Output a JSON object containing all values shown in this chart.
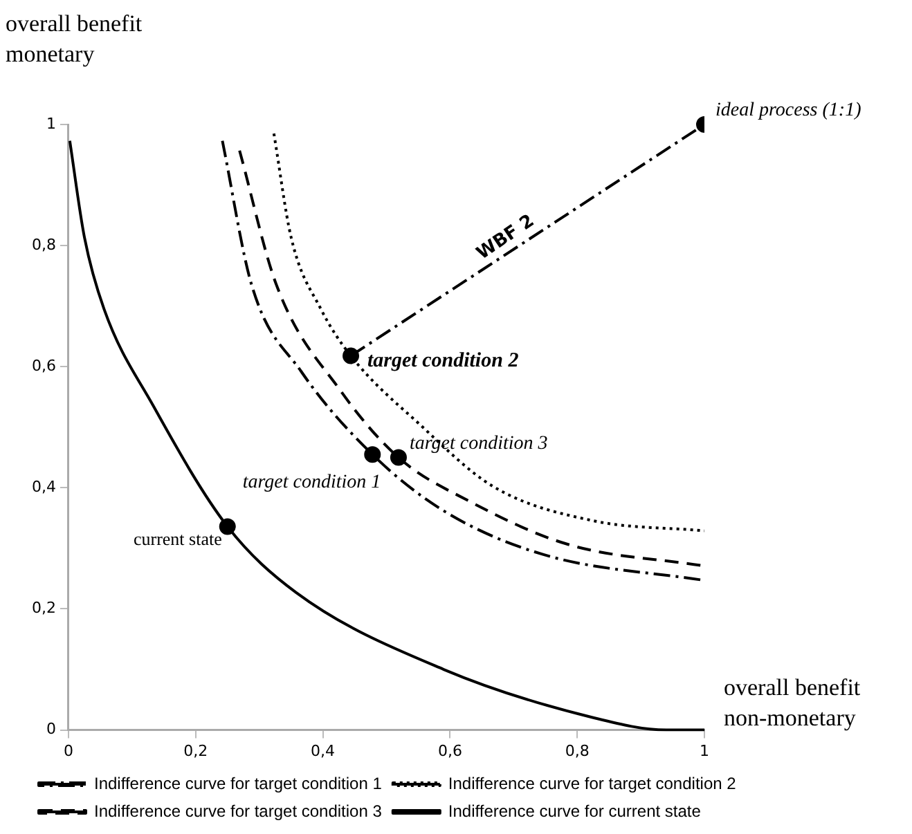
{
  "chart_data": {
    "type": "line",
    "xlabel": "overall benefit\nnon-monetary",
    "ylabel": "overall benefit\nmonetary",
    "xlim": [
      0,
      1.0
    ],
    "ylim": [
      0,
      1.0
    ],
    "xticks": [
      0,
      {
        "value": 0.2,
        "label": "0,2"
      },
      {
        "value": 0.4,
        "label": "0,4"
      },
      {
        "value": 0.6,
        "label": "0,6"
      },
      {
        "value": 0.8,
        "label": "0,8"
      },
      1
    ],
    "yticks": [
      0,
      {
        "value": 0.2,
        "label": "0,2"
      },
      {
        "value": 0.4,
        "label": "0,4"
      },
      {
        "value": 0.6,
        "label": "0,6"
      },
      {
        "value": 0.8,
        "label": "0,8"
      },
      1
    ],
    "grid": false,
    "legend": "bottom",
    "marker": "none",
    "series": [
      {
        "name": "Indifference curve for target condition 1",
        "color": "#000000",
        "line_style": "dashdot",
        "x": [
          0.242,
          0.288,
          0.366,
          0.478,
          0.59,
          0.746,
          1.0
        ],
        "values": [
          0.973,
          0.735,
          0.592,
          0.455,
          0.362,
          0.29,
          0.247
        ]
      },
      {
        "name": "Indifference curve for target condition 2",
        "color": "#000000",
        "line_style": "dotted",
        "x": [
          0.323,
          0.35,
          0.397,
          0.444,
          0.552,
          0.668,
          0.823,
          1.0
        ],
        "values": [
          0.985,
          0.814,
          0.695,
          0.618,
          0.505,
          0.402,
          0.346,
          0.329
        ]
      },
      {
        "name": "Indifference curve for target condition 3",
        "color": "#000000",
        "line_style": "dashed",
        "x": [
          0.269,
          0.327,
          0.428,
          0.519,
          0.63,
          0.784,
          1.0
        ],
        "values": [
          0.957,
          0.735,
          0.56,
          0.45,
          0.378,
          0.307,
          0.271
        ]
      },
      {
        "name": "Indifference curve for current state",
        "color": "#000000",
        "line_style": "solid",
        "x": [
          0.002,
          0.025,
          0.056,
          0.133,
          0.25,
          0.358,
          0.59,
          0.823,
          0.94,
          1.0
        ],
        "values": [
          0.973,
          0.814,
          0.695,
          0.536,
          0.336,
          0.227,
          0.1,
          0.021,
          0.0,
          0.0
        ]
      },
      {
        "color": "#000000",
        "line_style": "dashdot",
        "x": [
          0.444,
          1.0
        ],
        "values": [
          0.618,
          1.0
        ]
      },
      {
        "type": "scatter",
        "marker": "circle",
        "color": "#000000",
        "x": [
          1.0,
          0.444,
          0.478,
          0.519,
          0.25
        ],
        "values": [
          1.0,
          0.618,
          0.455,
          0.45,
          0.336
        ]
      }
    ],
    "annotations": [
      {
        "text": "ideal process (1:1)",
        "x": 1.0,
        "y": 1.0
      },
      {
        "text": "target condition 2",
        "x": 0.444,
        "y": 0.618
      },
      {
        "text": "target condition 3",
        "x": 0.519,
        "y": 0.45
      },
      {
        "text": "target condition 1",
        "x": 0.478,
        "y": 0.455
      },
      {
        "text": "current state",
        "x": 0.25,
        "y": 0.336
      },
      {
        "text": "WBF 2",
        "x": 0.7,
        "y": 0.794
      }
    ]
  }
}
